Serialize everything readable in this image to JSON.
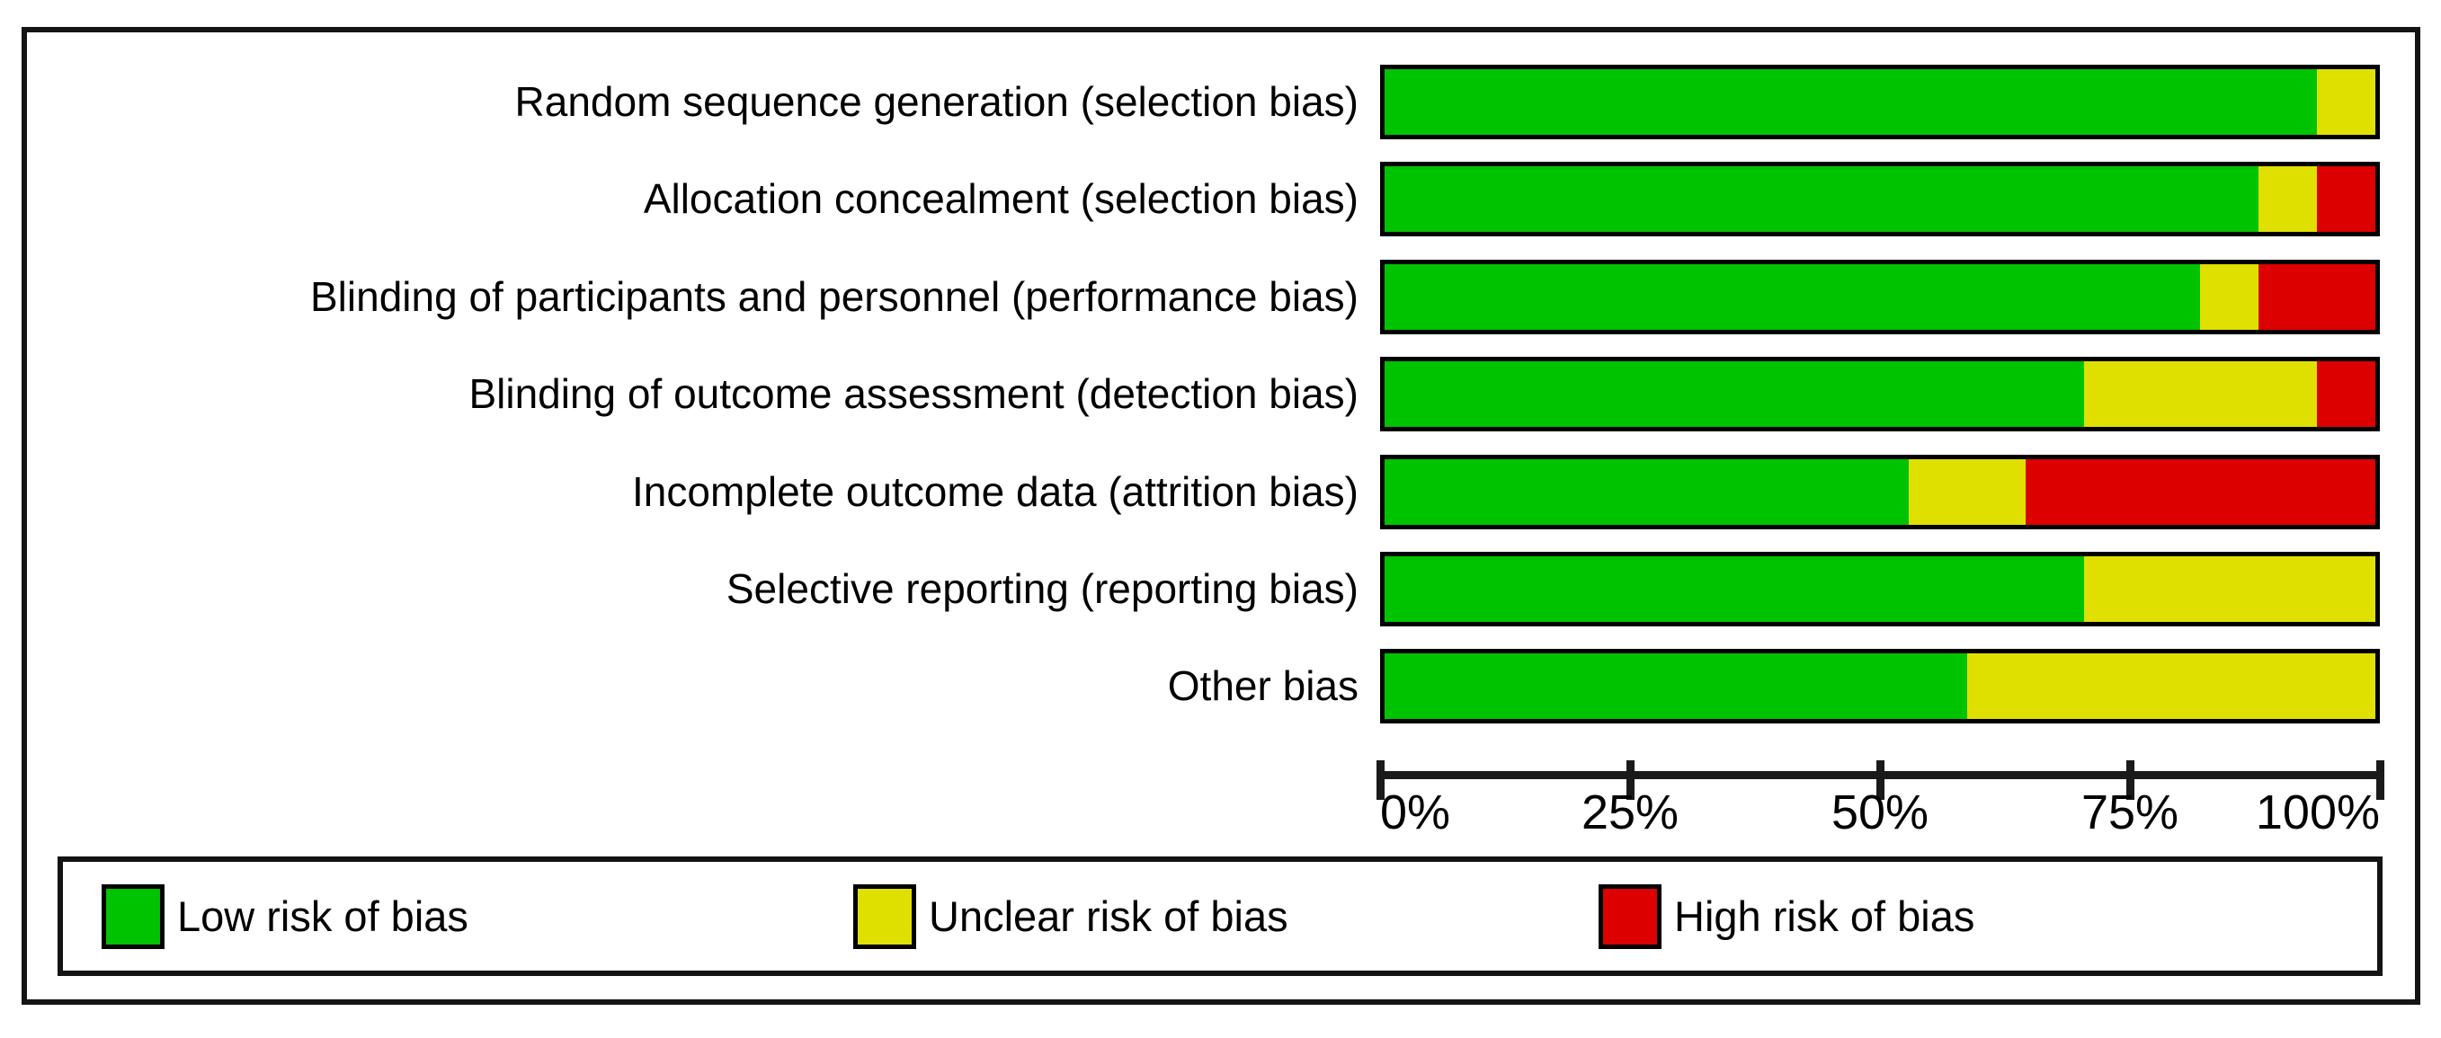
{
  "chart_data": {
    "type": "bar",
    "variant": "horizontal-stacked-percentage",
    "title": "",
    "xlabel": "",
    "ylabel": "",
    "grid": false,
    "legend_position": "bottom",
    "categories": [
      "Random sequence generation (selection bias)",
      "Allocation concealment (selection bias)",
      "Blinding of participants and personnel (performance bias)",
      "Blinding of outcome assessment (detection bias)",
      "Incomplete outcome data (attrition bias)",
      "Selective reporting (reporting bias)",
      "Other bias"
    ],
    "series": [
      {
        "name": "Low risk of bias",
        "color": "#00C300",
        "values_pct": [
          94.1,
          88.2,
          82.4,
          70.6,
          52.9,
          70.6,
          58.8
        ]
      },
      {
        "name": "Unclear risk of bias",
        "color": "#E0E000",
        "values_pct": [
          5.9,
          5.9,
          5.9,
          23.5,
          11.8,
          29.4,
          41.2
        ]
      },
      {
        "name": "High risk of bias",
        "color": "#DD0000",
        "values_pct": [
          0,
          5.9,
          11.8,
          5.9,
          35.3,
          0,
          0
        ]
      }
    ],
    "x_axis": {
      "range_pct": [
        0,
        100
      ],
      "tick_labels": [
        "0%",
        "25%",
        "50%",
        "75%",
        "100%"
      ]
    }
  },
  "legend": {
    "items": [
      {
        "label": "Low risk of bias",
        "color": "#00C300"
      },
      {
        "label": "Unclear risk of bias",
        "color": "#E0E000"
      },
      {
        "label": "High risk of bias",
        "color": "#DD0000"
      }
    ]
  }
}
